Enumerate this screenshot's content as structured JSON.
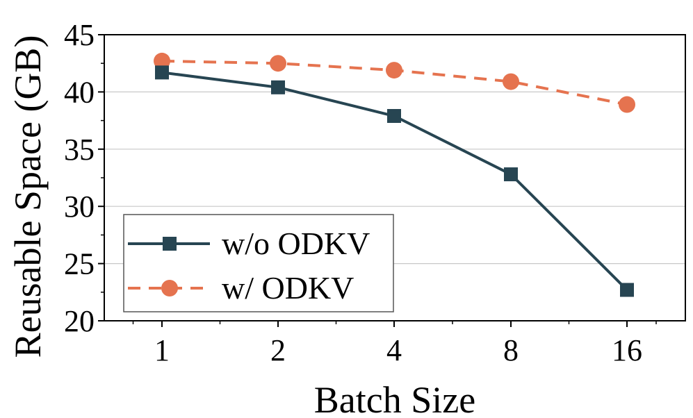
{
  "chart_data": {
    "type": "line",
    "title": "",
    "xlabel": "Batch Size",
    "ylabel": "Reusable Space (GB)",
    "categories": [
      "1",
      "2",
      "4",
      "8",
      "16"
    ],
    "ylim": [
      20,
      45
    ],
    "yticks": [
      20,
      25,
      30,
      35,
      40,
      45
    ],
    "grid": "horizontal",
    "legend_position": "lower-left",
    "series": [
      {
        "name": "w/o ODKV",
        "values": [
          41.7,
          40.4,
          37.9,
          32.8,
          22.7
        ],
        "color": "#274552",
        "marker": "square",
        "line": "solid"
      },
      {
        "name": "w/ ODKV",
        "values": [
          42.7,
          42.5,
          41.9,
          40.9,
          38.9
        ],
        "color": "#E5734F",
        "marker": "circle",
        "line": "dashed"
      }
    ]
  }
}
